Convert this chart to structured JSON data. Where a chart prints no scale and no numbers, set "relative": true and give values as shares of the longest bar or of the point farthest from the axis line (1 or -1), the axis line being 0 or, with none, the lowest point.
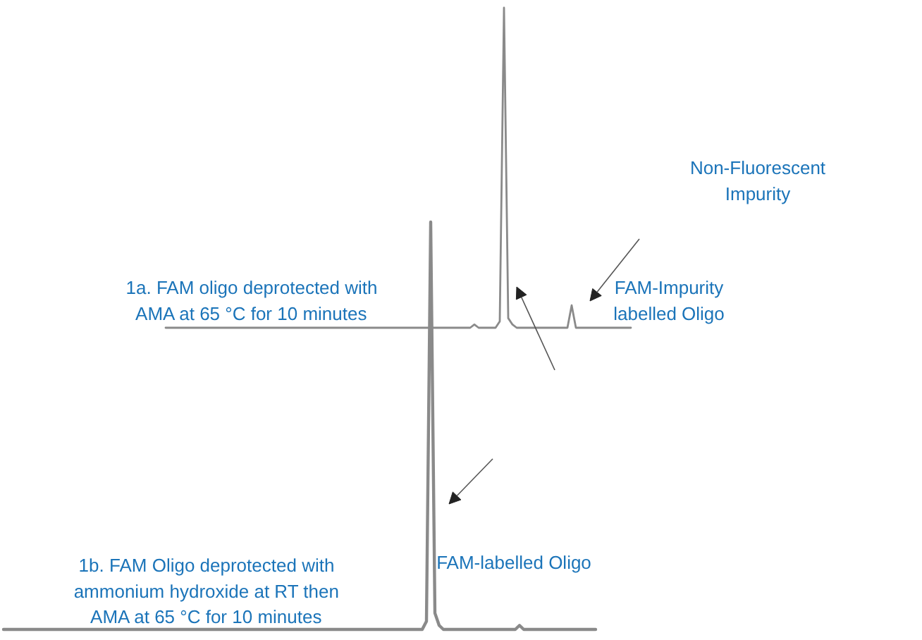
{
  "chart_data": [
    {
      "type": "line",
      "relative": true,
      "color": "#8a8a8a",
      "annotations": [
        "1a. FAM oligo deprotected with\nAMA at 65 °C for 10 minutes",
        "FAM-Impurity\nlabelled Oligo",
        "Non-Fluorescent\nImpurity"
      ],
      "categories": [
        null,
        null,
        null,
        null,
        null,
        null,
        null,
        null,
        null,
        null,
        null,
        null,
        null,
        null,
        null,
        null,
        null,
        null,
        null,
        null,
        null,
        null,
        null,
        null,
        null,
        null,
        null,
        null,
        null,
        null,
        null,
        null,
        null,
        null,
        null,
        null,
        null,
        null,
        null,
        null,
        null,
        null,
        null,
        null,
        null,
        null,
        null,
        null,
        null,
        null,
        null,
        null,
        null,
        null,
        null,
        null,
        null,
        null,
        null,
        null,
        null,
        null,
        null,
        null,
        null,
        null,
        null,
        null,
        null,
        null,
        null,
        null,
        null,
        null,
        null,
        null,
        null,
        null,
        null,
        null,
        null,
        null,
        null,
        null,
        null,
        null,
        null,
        null,
        null,
        null,
        null,
        null,
        null,
        null,
        null,
        null,
        null,
        null,
        null,
        null,
        null,
        null,
        null,
        null,
        null,
        null,
        null,
        null,
        null,
        null,
        null
      ],
      "values": [
        0,
        0,
        0,
        0,
        0,
        0,
        0,
        0,
        0,
        0,
        0,
        0,
        0,
        0,
        0,
        0,
        0,
        0,
        0,
        0,
        0,
        0,
        0,
        0,
        0,
        0,
        0,
        0,
        0,
        0,
        0,
        0,
        0,
        0,
        0,
        0,
        0,
        0,
        0,
        0,
        0,
        0,
        0,
        0,
        0,
        0,
        0,
        0,
        0,
        0,
        0,
        0,
        0,
        0,
        0,
        0,
        0,
        0,
        0,
        0,
        0,
        0,
        0,
        0,
        0,
        0,
        0,
        0,
        0,
        0,
        0,
        0,
        0,
        0.01,
        0,
        0,
        0,
        0,
        0,
        0.02,
        1,
        0.03,
        0.01,
        0,
        0,
        0,
        0,
        0,
        0,
        0,
        0,
        0,
        0,
        0,
        0,
        0,
        0.07,
        0,
        0,
        0,
        0,
        0,
        0,
        0,
        0,
        0,
        0,
        0,
        0,
        0,
        0
      ]
    },
    {
      "type": "line",
      "relative": true,
      "color": "#8a8a8a",
      "annotations": [
        "1b. FAM Oligo deprotected with\nammonium hydroxide at RT then\nAMA at 65 °C for 10 minutes",
        "FAM-labelled Oligo"
      ],
      "categories": [
        null,
        null,
        null,
        null,
        null,
        null,
        null,
        null,
        null,
        null,
        null,
        null,
        null,
        null,
        null,
        null,
        null,
        null,
        null,
        null,
        null,
        null,
        null,
        null,
        null,
        null,
        null,
        null,
        null,
        null,
        null,
        null,
        null,
        null,
        null,
        null,
        null,
        null,
        null,
        null,
        null,
        null,
        null,
        null,
        null,
        null,
        null,
        null,
        null,
        null,
        null,
        null,
        null,
        null,
        null,
        null,
        null,
        null,
        null,
        null,
        null,
        null,
        null,
        null,
        null,
        null,
        null,
        null,
        null,
        null,
        null,
        null,
        null,
        null,
        null,
        null,
        null,
        null,
        null,
        null,
        null,
        null,
        null,
        null,
        null,
        null,
        null,
        null,
        null,
        null,
        null,
        null,
        null,
        null,
        null,
        null,
        null,
        null,
        null,
        null,
        null,
        null,
        null,
        null,
        null,
        null,
        null,
        null,
        null,
        null,
        null,
        null,
        null,
        null,
        null,
        null,
        null,
        null,
        null,
        null,
        null,
        null,
        null,
        null,
        null,
        null,
        null,
        null,
        null,
        null,
        null,
        null,
        null,
        null,
        null,
        null,
        null,
        null,
        null,
        null,
        null
      ],
      "values": [
        0,
        0,
        0,
        0,
        0,
        0,
        0,
        0,
        0,
        0,
        0,
        0,
        0,
        0,
        0,
        0,
        0,
        0,
        0,
        0,
        0,
        0,
        0,
        0,
        0,
        0,
        0,
        0,
        0,
        0,
        0,
        0,
        0,
        0,
        0,
        0,
        0,
        0,
        0,
        0,
        0,
        0,
        0,
        0,
        0,
        0,
        0,
        0,
        0,
        0,
        0,
        0,
        0,
        0,
        0,
        0,
        0,
        0,
        0,
        0,
        0,
        0,
        0,
        0,
        0,
        0,
        0,
        0,
        0,
        0,
        0,
        0,
        0,
        0,
        0,
        0,
        0,
        0,
        0,
        0,
        0,
        0,
        0,
        0,
        0,
        0,
        0,
        0,
        0,
        0,
        0,
        0,
        0,
        0,
        0,
        0,
        0,
        0,
        0,
        0,
        0.02,
        1,
        0.04,
        0.01,
        0,
        0,
        0,
        0,
        0,
        0,
        0,
        0,
        0,
        0,
        0,
        0,
        0,
        0,
        0,
        0,
        0,
        0,
        0.01,
        0,
        0,
        0,
        0,
        0,
        0,
        0,
        0,
        0,
        0,
        0,
        0,
        0,
        0,
        0,
        0,
        0,
        0
      ]
    }
  ]
}
